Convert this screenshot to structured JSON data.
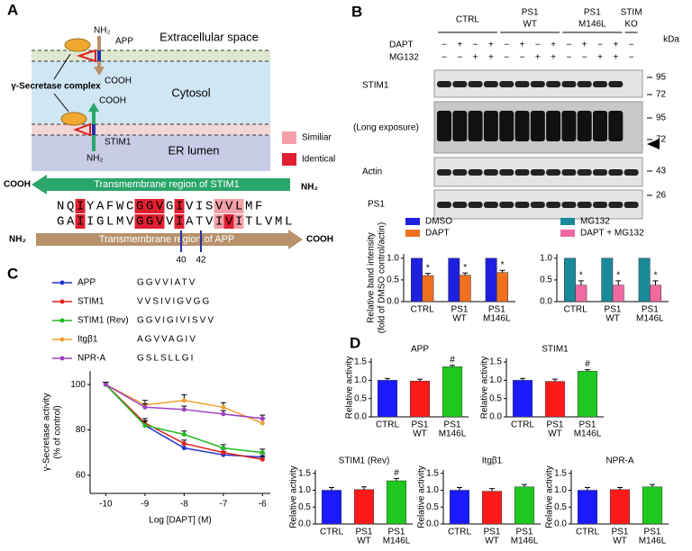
{
  "panel_labels": [
    "A",
    "B",
    "C",
    "D"
  ],
  "panel_a": {
    "extracellular": "Extracellular space",
    "cytosol": "Cytosol",
    "er_lumen": "ER lumen",
    "app": "APP",
    "stim1": "STIM1",
    "nh2": "NH₂",
    "cooh": "COOH",
    "complex": "γ-Secretase complex",
    "legend": [
      "Similiar",
      "Identical"
    ],
    "stim1_region": "Transmembrane region of STIM1",
    "app_region": "Transmembrane region of  APP",
    "sequences": [
      "NQIYAFWCGGVGIVISVVLMF",
      "GAIIGLMVGGVVIATVIVITLVML"
    ],
    "residues": [
      40,
      42
    ]
  },
  "panel_b": {
    "groups": [
      [
        "CTRL"
      ],
      [
        "PS1",
        "WT"
      ],
      [
        "PS1",
        "M146L"
      ],
      [
        "STIM",
        "KO"
      ]
    ],
    "treatments": [
      {
        "name": "DAPT",
        "signs": [
          "−",
          "+",
          "−",
          "+",
          "−",
          "+",
          "−",
          "+",
          "−",
          "+",
          "−",
          "+",
          "−"
        ]
      },
      {
        "name": "MG132",
        "signs": [
          "−",
          "−",
          "+",
          "+",
          "−",
          "−",
          "+",
          "+",
          "−",
          "−",
          "+",
          "+",
          "−"
        ]
      }
    ],
    "kda": "kDa",
    "blots": [
      "STIM1",
      "(Long exposure)",
      "Actin",
      "PS1"
    ],
    "markers": [
      95,
      72,
      95,
      72,
      43,
      26
    ]
  },
  "chart_data": [
    {
      "type": "bar",
      "ylabel": [
        "Relative band intensity",
        "(fold of DMSO control/actin)"
      ],
      "categories": [
        [
          "CTRL"
        ],
        [
          "PS1",
          "WT"
        ],
        [
          "PS1",
          "M146L"
        ]
      ],
      "series": [
        {
          "name": "DMSO",
          "color": "#1f1fe0",
          "values": [
            1,
            1,
            1
          ]
        },
        {
          "name": "DAPT",
          "color": "#f07020",
          "values": [
            0.6,
            0.61,
            0.67
          ],
          "errors": [
            0.05,
            0.05,
            0.05
          ],
          "significance": [
            "*",
            "*",
            "*"
          ]
        }
      ],
      "ylim": [
        0,
        1.1
      ],
      "yticks": [
        {
          "value": 0,
          "label": "0.0"
        },
        0.5,
        {
          "value": 1,
          "label": "1.0"
        }
      ]
    },
    {
      "type": "bar",
      "categories": [
        [
          "CTRL"
        ],
        [
          "PS1",
          "WT"
        ],
        [
          "PS1",
          "M146L"
        ]
      ],
      "series": [
        {
          "name": "MG132",
          "color": "#1a8a9a",
          "values": [
            1,
            1,
            1
          ]
        },
        {
          "name": "DAPT + MG132",
          "color": "#f06aa0",
          "values": [
            0.38,
            0.38,
            0.38
          ],
          "errors": [
            0.1,
            0.1,
            0.1
          ],
          "significance": [
            "*",
            "*",
            "*"
          ]
        }
      ],
      "ylim": [
        0,
        1.1
      ],
      "yticks": [
        {
          "value": 0,
          "label": "0.0"
        },
        0.5,
        {
          "value": 1,
          "label": "1.0"
        }
      ]
    },
    {
      "type": "line",
      "xlabel": "Log [DAPT] (M)",
      "ylabel": [
        "γ-Secretase activity",
        "(% of control)"
      ],
      "x": [
        -10,
        -9,
        -8,
        -7,
        -6
      ],
      "xlim": [
        -10.4,
        -5.8
      ],
      "xticks": [
        -10,
        -9,
        -8,
        -7,
        -6
      ],
      "ylim": [
        52,
        106
      ],
      "yticks": [
        60,
        80,
        100
      ],
      "series": [
        {
          "name": "APP",
          "sequence": "GGVVIATV",
          "color": "#2233cc",
          "values": [
            100,
            82,
            72,
            69,
            68
          ],
          "errors": [
            1,
            2,
            1.5,
            1.5,
            1.5
          ]
        },
        {
          "name": "STIM1",
          "sequence": "VVSIVIGVGG",
          "color": "#e0201c",
          "values": [
            100,
            83,
            74,
            70,
            67
          ],
          "errors": [
            1,
            2,
            1.5,
            1.5,
            1.5
          ]
        },
        {
          "name": "STIM1 (Rev)",
          "sequence": "GGVIGIVISVV",
          "color": "#22bb22",
          "values": [
            100,
            82,
            78,
            72,
            70
          ],
          "errors": [
            1,
            2,
            1.5,
            1.5,
            1.5
          ]
        },
        {
          "name": "Itgβ1",
          "sequence": "AGVVAGIV",
          "color": "#f0a030",
          "values": [
            100,
            91,
            93,
            90,
            83
          ],
          "errors": [
            1,
            2,
            2.5,
            2,
            2
          ]
        },
        {
          "name": "NPR-A",
          "sequence": "GSLSLLGI",
          "color": "#a040c0",
          "values": [
            100,
            90,
            89,
            87,
            85
          ],
          "errors": [
            1,
            1.5,
            1.5,
            1.5,
            1.5
          ]
        }
      ]
    },
    {
      "type": "bar",
      "title": "APP",
      "ylabel": [
        "Relative activity"
      ],
      "categories": [
        [
          "CTRL"
        ],
        [
          "PS1",
          "WT"
        ],
        [
          "PS1",
          "M146L"
        ]
      ],
      "values": [
        1,
        0.98,
        1.37
      ],
      "errors": [
        0.05,
        0.05,
        0.04
      ],
      "colors": [
        "#1a1aff",
        "#ff1a1a",
        "#1ec81e"
      ],
      "significance": [
        null,
        null,
        "#"
      ],
      "ylim": [
        0,
        1.6
      ],
      "yticks": [
        {
          "value": 0,
          "label": "0.0"
        },
        0.5,
        {
          "value": 1,
          "label": "1.0"
        },
        1.5
      ]
    },
    {
      "type": "bar",
      "title": "STIM1",
      "ylabel": [
        "Relative activity"
      ],
      "categories": [
        [
          "CTRL"
        ],
        [
          "PS1",
          "WT"
        ],
        [
          "PS1",
          "M146L"
        ]
      ],
      "values": [
        1,
        0.97,
        1.25
      ],
      "errors": [
        0.05,
        0.06,
        0.04
      ],
      "colors": [
        "#1a1aff",
        "#ff1a1a",
        "#1ec81e"
      ],
      "significance": [
        null,
        null,
        "#"
      ],
      "ylim": [
        0,
        1.6
      ],
      "yticks": [
        {
          "value": 0,
          "label": "0.0"
        },
        0.5,
        {
          "value": 1,
          "label": "1.0"
        },
        1.5
      ]
    },
    {
      "type": "bar",
      "title": "STIM1 (Rev)",
      "ylabel": [
        "Relative activity"
      ],
      "categories": [
        [
          "CTRL"
        ],
        [
          "PS1",
          "WT"
        ],
        [
          "PS1",
          "M146L"
        ]
      ],
      "values": [
        1,
        1.02,
        1.28
      ],
      "errors": [
        0.08,
        0.08,
        0.07
      ],
      "colors": [
        "#1a1aff",
        "#ff1a1a",
        "#1ec81e"
      ],
      "significance": [
        null,
        null,
        "#"
      ],
      "ylim": [
        0,
        1.6
      ],
      "yticks": [
        {
          "value": 0,
          "label": "0.0"
        },
        0.5,
        {
          "value": 1,
          "label": "1.0"
        },
        1.5
      ]
    },
    {
      "type": "bar",
      "title": "Itgβ1",
      "ylabel": [
        "Relative activity"
      ],
      "categories": [
        [
          "CTRL"
        ],
        [
          "PS1",
          "WT"
        ],
        [
          "PS1",
          "M146L"
        ]
      ],
      "values": [
        1,
        0.97,
        1.1
      ],
      "errors": [
        0.08,
        0.08,
        0.07
      ],
      "colors": [
        "#1a1aff",
        "#ff1a1a",
        "#1ec81e"
      ],
      "ylim": [
        0,
        1.6
      ],
      "yticks": [
        {
          "value": 0,
          "label": "0.0"
        },
        0.5,
        {
          "value": 1,
          "label": "1.0"
        },
        1.5
      ]
    },
    {
      "type": "bar",
      "title": "NPR-A",
      "ylabel": [
        "Relative activity"
      ],
      "categories": [
        [
          "CTRL"
        ],
        [
          "PS1",
          "WT"
        ],
        [
          "PS1",
          "M146L"
        ]
      ],
      "values": [
        1,
        1.02,
        1.1
      ],
      "errors": [
        0.08,
        0.06,
        0.07
      ],
      "colors": [
        "#1a1aff",
        "#ff1a1a",
        "#1ec81e"
      ],
      "ylim": [
        0,
        1.6
      ],
      "yticks": [
        {
          "value": 0,
          "label": "0.0"
        },
        0.5,
        {
          "value": 1,
          "label": "1.0"
        },
        1.5
      ]
    }
  ]
}
